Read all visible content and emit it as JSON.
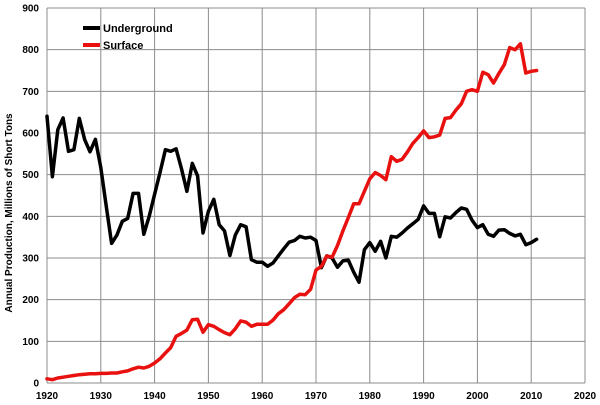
{
  "chart_data": {
    "type": "line",
    "title": "",
    "xlabel": "",
    "ylabel": "Annual Production, Millions of Short Tons",
    "xlim": [
      1920,
      2020
    ],
    "ylim": [
      0,
      900
    ],
    "xticks": [
      1920,
      1930,
      1940,
      1950,
      1960,
      1970,
      1980,
      1990,
      2000,
      2010,
      2020
    ],
    "yticks": [
      0,
      100,
      200,
      300,
      400,
      500,
      600,
      700,
      800,
      900
    ],
    "grid": true,
    "legend": "top-left",
    "series": [
      {
        "name": "Underground",
        "color": "#000000",
        "x": [
          1920,
          1921,
          1922,
          1923,
          1924,
          1925,
          1926,
          1927,
          1928,
          1929,
          1930,
          1931,
          1932,
          1933,
          1934,
          1935,
          1936,
          1937,
          1938,
          1939,
          1940,
          1941,
          1942,
          1943,
          1944,
          1945,
          1946,
          1947,
          1948,
          1949,
          1950,
          1951,
          1952,
          1953,
          1954,
          1955,
          1956,
          1957,
          1958,
          1959,
          1960,
          1961,
          1962,
          1963,
          1964,
          1965,
          1966,
          1967,
          1968,
          1969,
          1970,
          1971,
          1972,
          1973,
          1974,
          1975,
          1976,
          1977,
          1978,
          1979,
          1980,
          1981,
          1982,
          1983,
          1984,
          1985,
          1986,
          1987,
          1988,
          1989,
          1990,
          1991,
          1992,
          1993,
          1994,
          1995,
          1996,
          1997,
          1998,
          1999,
          2000,
          2001,
          2002,
          2003,
          2004,
          2005,
          2006,
          2007,
          2008,
          2009,
          2010,
          2011
        ],
        "y": [
          640,
          495,
          608,
          636,
          556,
          560,
          635,
          584,
          555,
          585,
          517,
          425,
          335,
          355,
          388,
          395,
          455,
          455,
          357,
          400,
          453,
          505,
          560,
          556,
          562,
          514,
          460,
          527,
          497,
          360,
          412,
          441,
          380,
          365,
          306,
          355,
          380,
          375,
          296,
          290,
          290,
          280,
          288,
          305,
          322,
          338,
          342,
          352,
          348,
          350,
          342,
          277,
          305,
          300,
          278,
          293,
          295,
          266,
          242,
          320,
          337,
          316,
          340,
          300,
          352,
          350,
          360,
          372,
          382,
          393,
          425,
          407,
          407,
          351,
          399,
          396,
          409,
          420,
          417,
          391,
          373,
          380,
          357,
          352,
          367,
          368,
          359,
          353,
          357,
          332,
          337,
          345
        ]
      },
      {
        "name": "Surface",
        "color": "#e8110f",
        "x": [
          1920,
          1921,
          1922,
          1923,
          1924,
          1925,
          1926,
          1927,
          1928,
          1929,
          1930,
          1931,
          1932,
          1933,
          1934,
          1935,
          1936,
          1937,
          1938,
          1939,
          1940,
          1941,
          1942,
          1943,
          1944,
          1945,
          1946,
          1947,
          1948,
          1949,
          1950,
          1951,
          1952,
          1953,
          1954,
          1955,
          1956,
          1957,
          1958,
          1959,
          1960,
          1961,
          1962,
          1963,
          1964,
          1965,
          1966,
          1967,
          1968,
          1969,
          1970,
          1971,
          1972,
          1973,
          1974,
          1975,
          1976,
          1977,
          1978,
          1979,
          1980,
          1981,
          1982,
          1983,
          1984,
          1985,
          1986,
          1987,
          1988,
          1989,
          1990,
          1991,
          1992,
          1993,
          1994,
          1995,
          1996,
          1997,
          1998,
          1999,
          2000,
          2001,
          2002,
          2003,
          2004,
          2005,
          2006,
          2007,
          2008,
          2009,
          2010,
          2011
        ],
        "y": [
          10,
          8,
          12,
          14,
          16,
          18,
          20,
          21,
          22,
          22,
          23,
          23,
          24,
          24,
          27,
          29,
          34,
          38,
          36,
          40,
          48,
          58,
          72,
          85,
          112,
          119,
          127,
          152,
          153,
          122,
          140,
          136,
          128,
          121,
          116,
          130,
          149,
          146,
          136,
          141,
          141,
          141,
          151,
          166,
          176,
          190,
          205,
          213,
          212,
          225,
          271,
          280,
          305,
          302,
          330,
          365,
          397,
          430,
          430,
          460,
          490,
          505,
          498,
          488,
          543,
          532,
          537,
          555,
          575,
          589,
          605,
          589,
          591,
          595,
          635,
          637,
          655,
          670,
          700,
          704,
          700,
          746,
          740,
          720,
          743,
          764,
          805,
          800,
          814,
          744,
          748,
          750
        ]
      }
    ]
  }
}
